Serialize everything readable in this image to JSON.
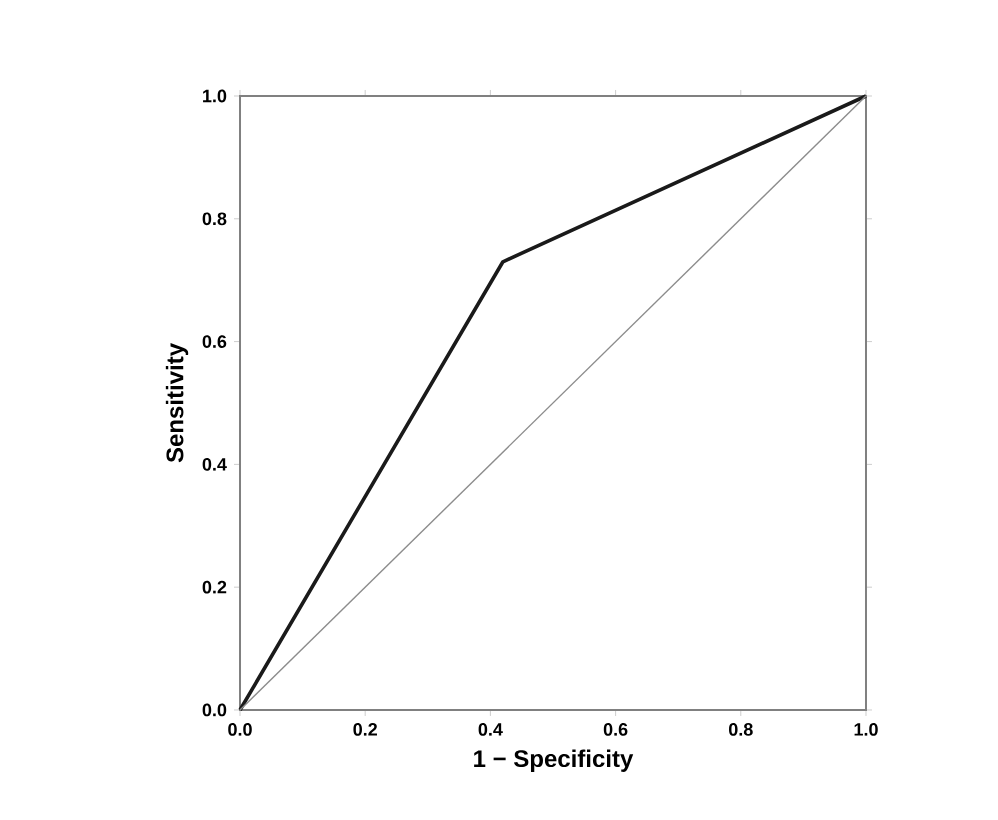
{
  "chart_data": {
    "type": "line",
    "xlabel": "1 − Specificity",
    "ylabel": "Sensitivity",
    "series": [
      {
        "color": "#1a1a1a",
        "x": [
          0,
          0.42,
          1
        ],
        "values": [
          0,
          0.73,
          1
        ]
      },
      {
        "color": "#8c8c8c",
        "x": [
          0,
          1
        ],
        "values": [
          0,
          1
        ]
      }
    ],
    "xlim": [
      0,
      1
    ],
    "ylim": [
      0,
      1
    ],
    "xticks": [
      {
        "value": 0,
        "label": "0.0"
      },
      {
        "value": 0.2,
        "label": "0.2"
      },
      {
        "value": 0.4,
        "label": "0.4"
      },
      {
        "value": 0.6,
        "label": "0.6"
      },
      {
        "value": 0.8,
        "label": "0.8"
      },
      {
        "value": 1,
        "label": "1.0"
      }
    ],
    "yticks": [
      {
        "value": 0,
        "label": "0.0"
      },
      {
        "value": 0.2,
        "label": "0.2"
      },
      {
        "value": 0.4,
        "label": "0.4"
      },
      {
        "value": 0.6,
        "label": "0.6"
      },
      {
        "value": 0.8,
        "label": "0.8"
      },
      {
        "value": 1,
        "label": "1.0"
      }
    ],
    "grid": false,
    "marker": "none",
    "line_style": "solid"
  }
}
